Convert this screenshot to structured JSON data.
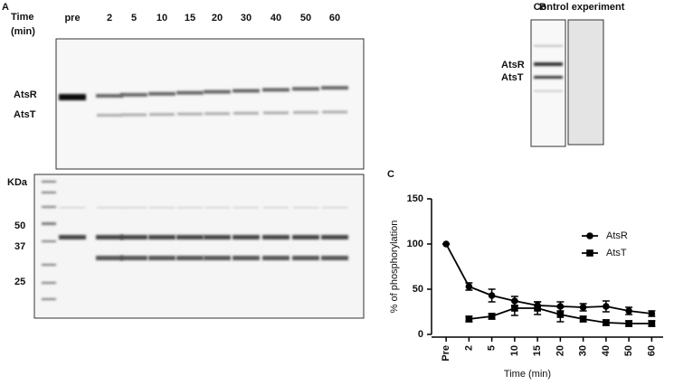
{
  "panel_a": {
    "label": "A",
    "time_label": [
      "Time",
      "(min)"
    ],
    "lanes": [
      "pre",
      "2",
      "5",
      "10",
      "15",
      "20",
      "30",
      "40",
      "50",
      "60"
    ],
    "bands": [
      "AtsR",
      "AtsT"
    ],
    "marker_unit": "KDa",
    "markers": [
      "50",
      "37",
      "25"
    ]
  },
  "panel_b": {
    "label": "B",
    "title": "Control experiment",
    "bands": [
      "AtsR",
      "AtsT"
    ]
  },
  "panel_c": {
    "label": "C"
  },
  "chart_data": {
    "type": "line",
    "xlabel": "Time (min)",
    "ylabel": "% of phosphorylation",
    "categories": [
      "Pre",
      "2",
      "5",
      "10",
      "15",
      "20",
      "30",
      "40",
      "50",
      "60"
    ],
    "series": [
      {
        "name": "AtsR",
        "color": "#000000",
        "marker": "circle",
        "values": [
          100,
          53,
          43,
          37,
          32,
          31,
          30,
          31,
          26,
          23
        ],
        "errors": [
          0,
          4,
          7,
          5,
          4,
          5,
          4,
          6,
          4,
          3
        ]
      },
      {
        "name": "AtsT",
        "color": "#000000",
        "marker": "square",
        "values": [
          null,
          17,
          20,
          29,
          29,
          22,
          17,
          13,
          12,
          12
        ],
        "errors": [
          null,
          3,
          3,
          8,
          7,
          8,
          3,
          3,
          3,
          3
        ]
      }
    ],
    "ylim": [
      0,
      150
    ],
    "yticks": [
      0,
      50,
      100,
      150
    ],
    "legend": "right"
  }
}
